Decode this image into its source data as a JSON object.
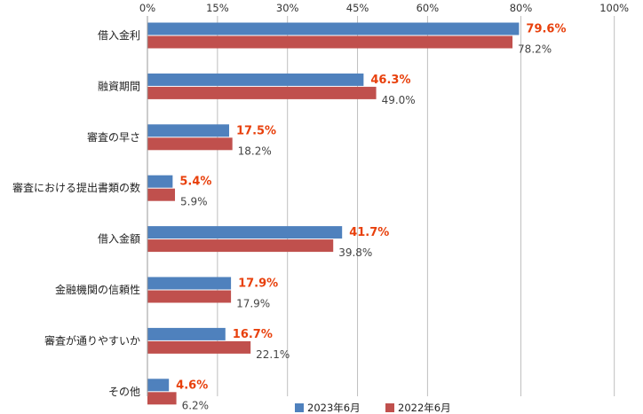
{
  "chart_data": {
    "type": "bar",
    "orientation": "horizontal",
    "categories": [
      "借入金利",
      "融資期間",
      "審査の早さ",
      "審査における提出書類の数",
      "借入金額",
      "金融機関の信頼性",
      "審査が通りやすいか",
      "その他"
    ],
    "series": [
      {
        "name": "2023年6月",
        "color": "#4f81bd",
        "label_color": "#e8400c",
        "values": [
          79.6,
          46.3,
          17.5,
          5.4,
          41.7,
          17.9,
          16.7,
          4.6
        ],
        "labels": [
          "79.6%",
          "46.3%",
          "17.5%",
          "5.4%",
          "41.7%",
          "17.9%",
          "16.7%",
          "4.6%"
        ]
      },
      {
        "name": "2022年6月",
        "color": "#c0504d",
        "label_color": "#444444",
        "values": [
          78.2,
          49.0,
          18.2,
          5.9,
          39.8,
          17.9,
          22.1,
          6.2
        ],
        "labels": [
          "78.2%",
          "49.0%",
          "18.2%",
          "5.9%",
          "39.8%",
          "17.9%",
          "22.1%",
          "6.2%"
        ]
      }
    ],
    "xlim": [
      0,
      95.5
    ],
    "x_ticks": [
      0,
      15,
      30,
      45,
      60,
      80,
      100
    ],
    "x_tick_labels": [
      "0%",
      "15%",
      "30%",
      "45%",
      "60%",
      "80%",
      "100%"
    ],
    "grid": true,
    "legend_position": "bottom-center"
  }
}
